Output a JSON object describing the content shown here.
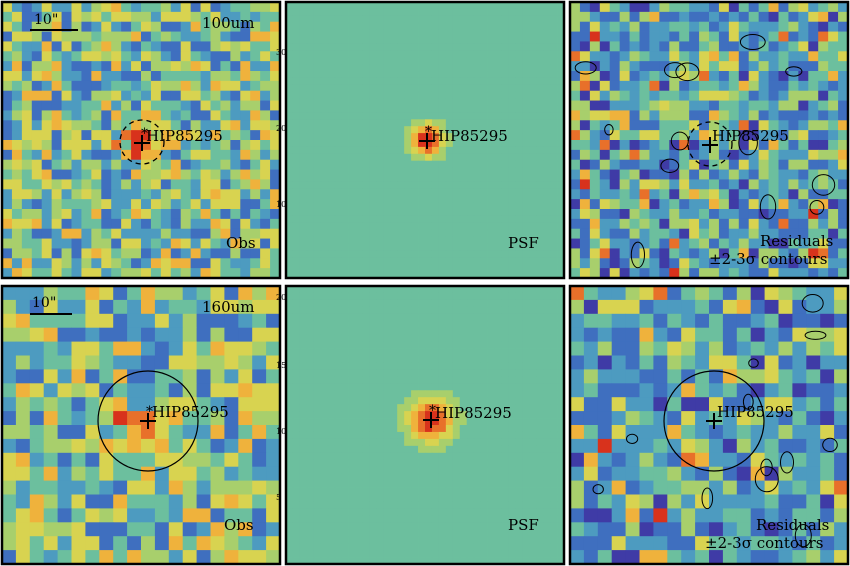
{
  "figure": {
    "rows": [
      {
        "band": "100um",
        "panels": [
          {
            "kind": "obs",
            "scale_bar": "10\"",
            "band_label": "100um",
            "target": "HIP85295",
            "corner_label": "Obs",
            "ring": "dashed"
          },
          {
            "kind": "psf",
            "target": "HIP85295",
            "corner_label": "PSF",
            "axis_ticks": [
              "30",
              "20",
              "10"
            ]
          },
          {
            "kind": "residuals",
            "target": "HIP85295",
            "corner_label": "Residuals",
            "corner_label_2": "±2-3σ contours",
            "ring": "dashed"
          }
        ]
      },
      {
        "band": "160um",
        "panels": [
          {
            "kind": "obs",
            "scale_bar": "10\"",
            "band_label": "160um",
            "target": "HIP85295",
            "corner_label": "Obs",
            "ring": "solid"
          },
          {
            "kind": "psf",
            "target": "HIP85295",
            "corner_label": "PSF",
            "axis_ticks": [
              "20",
              "15",
              "10",
              "5"
            ]
          },
          {
            "kind": "residuals",
            "target": "HIP85295",
            "corner_label": "Residuals",
            "corner_label_2": "±2-3σ contours",
            "ring": "solid"
          }
        ]
      }
    ],
    "colormap": [
      "#3b0f70",
      "#3f3ba6",
      "#3f6fbf",
      "#4d9bc0",
      "#6cbf9e",
      "#a8cf6c",
      "#d8d350",
      "#efb23c",
      "#e8702a",
      "#d8321c"
    ]
  }
}
